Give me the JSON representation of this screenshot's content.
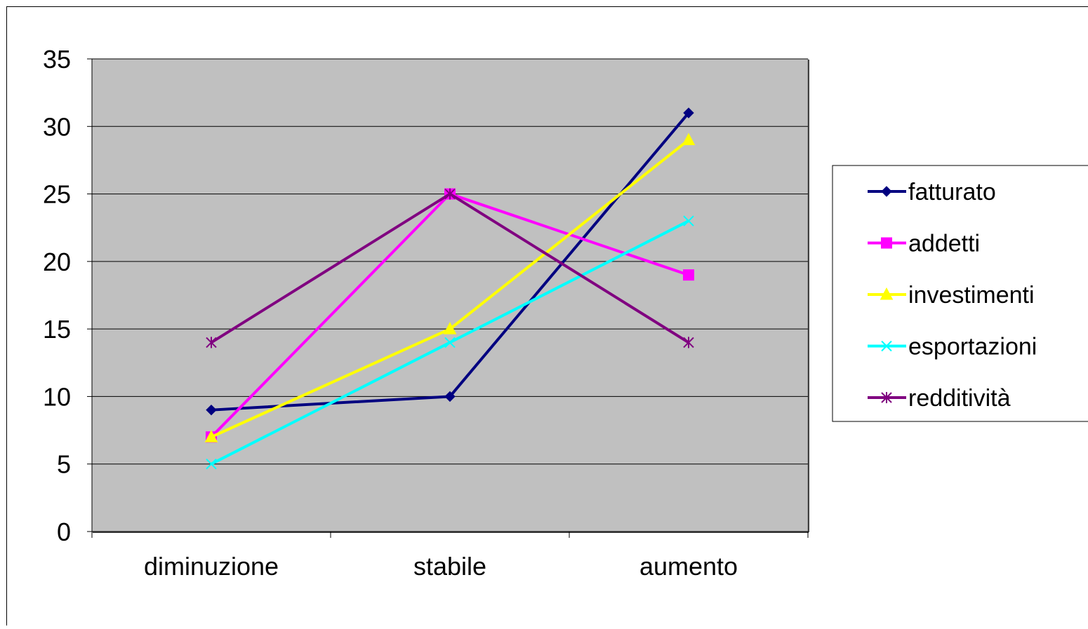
{
  "chart_data": {
    "type": "line",
    "title": "",
    "xlabel": "",
    "ylabel": "",
    "categories": [
      "diminuzione",
      "stabile",
      "aumento"
    ],
    "ylim": [
      0,
      35
    ],
    "yticks": [
      0,
      5,
      10,
      15,
      20,
      25,
      30,
      35
    ],
    "grid": true,
    "plot_background": "#C0C0C0",
    "legend_position": "right",
    "series": [
      {
        "name": "fatturato",
        "color": "#000080",
        "marker": "diamond",
        "values": [
          9,
          10,
          31
        ]
      },
      {
        "name": "addetti",
        "color": "#FF00FF",
        "marker": "square",
        "values": [
          7,
          25,
          19
        ]
      },
      {
        "name": "investimenti",
        "color": "#FFFF00",
        "marker": "triangle",
        "values": [
          7,
          15,
          29
        ]
      },
      {
        "name": "esportazioni",
        "color": "#00FFFF",
        "marker": "x",
        "values": [
          5,
          14,
          23
        ]
      },
      {
        "name": "redditività",
        "color": "#800080",
        "marker": "star",
        "values": [
          14,
          25,
          14
        ]
      }
    ]
  }
}
